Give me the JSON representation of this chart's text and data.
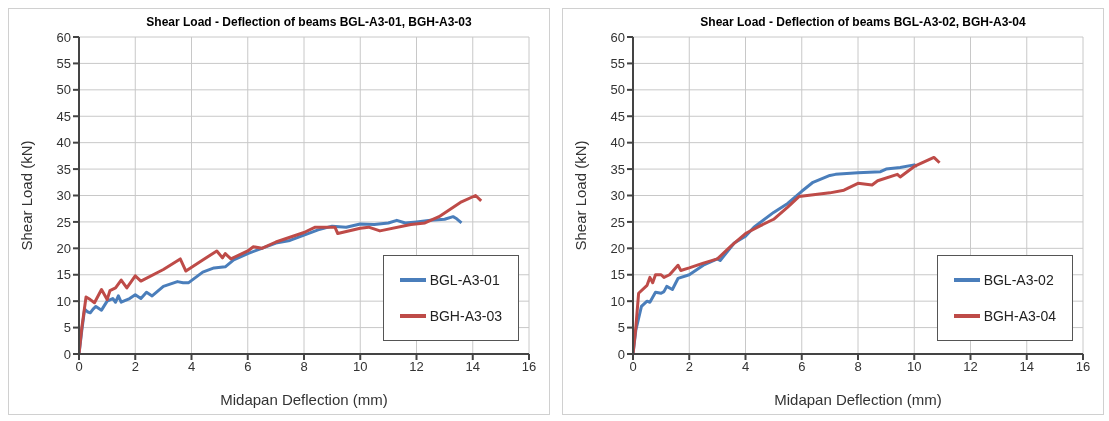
{
  "chart_data": [
    {
      "type": "line",
      "title": "Shear Load - Deflection of beams BGL-A3-01, BGH-A3-03",
      "xlabel": "Midapan Deflection (mm)",
      "ylabel": "Shear Load (kN)",
      "xlim": [
        0,
        16
      ],
      "xticks": [
        0,
        2,
        4,
        6,
        8,
        10,
        12,
        14,
        16
      ],
      "ylim": [
        0,
        60
      ],
      "yticks": [
        0,
        5,
        10,
        15,
        20,
        25,
        30,
        35,
        40,
        45,
        50,
        55,
        60
      ],
      "grid": true,
      "legend": "bottom right",
      "marker": "none",
      "line_style": "solid",
      "series": [
        {
          "name": "BGL-A3-01",
          "color": "#4a7ebb",
          "x": [
            0,
            0.1,
            0.2,
            0.3,
            0.4,
            0.5,
            0.6,
            0.8,
            1,
            1.2,
            1.3,
            1.4,
            1.5,
            1.8,
            2,
            2.2,
            2.4,
            2.6,
            3,
            3.5,
            3.7,
            3.9,
            4.4,
            4.8,
            5.2,
            5.5,
            6,
            6.5,
            7,
            7.5,
            8,
            8.5,
            9,
            9.5,
            10,
            10.5,
            11,
            11.3,
            11.6,
            12,
            12.5,
            13,
            13.3,
            13.4,
            13.6
          ],
          "values": [
            0,
            4.5,
            8.5,
            8,
            7.8,
            8.5,
            9,
            8.3,
            10,
            10.5,
            9.8,
            11,
            9.8,
            10.5,
            11.2,
            10.5,
            11.7,
            11,
            12.8,
            13.7,
            13.5,
            13.5,
            15.5,
            16.3,
            16.5,
            17.8,
            19,
            20,
            21,
            21.5,
            22.5,
            23.5,
            24.2,
            24,
            24.6,
            24.5,
            24.8,
            25.3,
            24.8,
            25,
            25.3,
            25.5,
            26,
            25.7,
            24.8
          ]
        },
        {
          "name": "BGH-A3-03",
          "color": "#be4b48",
          "x": [
            0,
            0.1,
            0.25,
            0.4,
            0.55,
            0.8,
            1,
            1.1,
            1.3,
            1.5,
            1.7,
            2,
            2.2,
            3,
            3.6,
            3.8,
            4.4,
            4.9,
            5.1,
            5.2,
            5.4,
            6,
            6.2,
            6.5,
            7,
            8,
            8.4,
            9.1,
            9.2,
            10,
            10.3,
            10.7,
            11.8,
            12.3,
            12.8,
            13.6,
            14.1,
            14.3
          ],
          "values": [
            0,
            5,
            10.8,
            10.3,
            9.7,
            12.2,
            10.3,
            12,
            12.5,
            14,
            12.5,
            14.8,
            13.8,
            16,
            18,
            15.7,
            17.8,
            19.5,
            18.2,
            19,
            18,
            19.5,
            20.3,
            20,
            21.2,
            23,
            24,
            24,
            22.8,
            23.8,
            24,
            23.3,
            24.5,
            24.8,
            26,
            28.8,
            30,
            29
          ]
        }
      ]
    },
    {
      "type": "line",
      "title": "Shear Load - Deflection of beams BGL-A3-02, BGH-A3-04",
      "xlabel": "Midapan Deflection (mm)",
      "ylabel": "Shear Load (kN)",
      "xlim": [
        0,
        16
      ],
      "xticks": [
        0,
        2,
        4,
        6,
        8,
        10,
        12,
        14,
        16
      ],
      "ylim": [
        0,
        60
      ],
      "yticks": [
        0,
        5,
        10,
        15,
        20,
        25,
        30,
        35,
        40,
        45,
        50,
        55,
        60
      ],
      "grid": true,
      "legend": "bottom right",
      "marker": "none",
      "line_style": "solid",
      "series": [
        {
          "name": "BGL-A3-02",
          "color": "#4a7ebb",
          "x": [
            0,
            0.1,
            0.3,
            0.5,
            0.6,
            0.8,
            1,
            1.1,
            1.2,
            1.4,
            1.6,
            2,
            2.5,
            3,
            3.1,
            3.6,
            4,
            4.3,
            5,
            5.5,
            6,
            6.4,
            7,
            7.2,
            8,
            8.8,
            9,
            9.5,
            10,
            10.1
          ],
          "values": [
            0,
            4.5,
            9,
            10,
            9.8,
            11.7,
            11.5,
            11.8,
            12.8,
            12.2,
            14.3,
            15,
            16.8,
            18,
            17.7,
            21,
            22.3,
            24,
            26.8,
            28.5,
            30.8,
            32.5,
            33.8,
            34,
            34.3,
            34.5,
            35,
            35.3,
            35.8,
            35.5
          ]
        },
        {
          "name": "BGH-A3-04",
          "color": "#be4b48",
          "x": [
            0,
            0.1,
            0.2,
            0.5,
            0.6,
            0.7,
            0.8,
            1,
            1.1,
            1.3,
            1.6,
            1.7,
            2,
            2.5,
            3,
            3.5,
            4,
            4.5,
            5,
            5.5,
            5.9,
            7,
            7.5,
            8,
            8.5,
            8.7,
            9.4,
            9.5,
            10,
            10.7,
            10.9
          ],
          "values": [
            0,
            5,
            11.5,
            13,
            14.5,
            13.5,
            15,
            15,
            14.5,
            15,
            16.8,
            15.8,
            16.3,
            17.2,
            18,
            20.5,
            22.8,
            24.2,
            25.5,
            27.8,
            29.8,
            30.5,
            31,
            32.3,
            32,
            32.8,
            34,
            33.5,
            35.5,
            37.2,
            36.2
          ]
        }
      ]
    }
  ]
}
